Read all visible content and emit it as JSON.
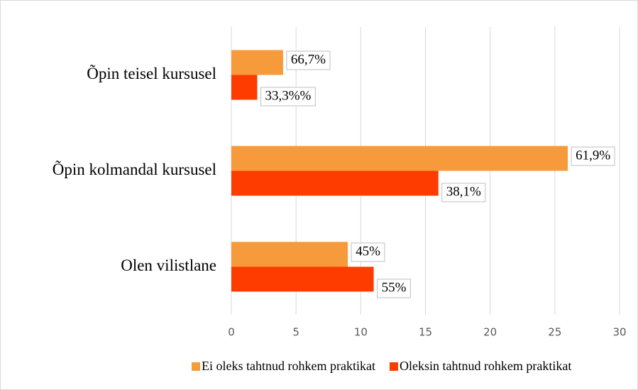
{
  "chart_data": {
    "type": "bar",
    "orientation": "horizontal",
    "categories": [
      "Õpin teisel kursusel",
      "Õpin kolmandal kursusel",
      "Olen vilistlane"
    ],
    "series": [
      {
        "name": "Ei oleks tahtnud rohkem praktikat",
        "color": "#f79a3b",
        "values": [
          4,
          26,
          9
        ],
        "data_labels": [
          "66,7%",
          "61,9%",
          "45%"
        ]
      },
      {
        "name": "Oleksin tahtnud rohkem praktikat",
        "color": "#ff3c00",
        "values": [
          2,
          16,
          11
        ],
        "data_labels": [
          "33,3%%",
          "38,1%",
          "55%"
        ]
      }
    ],
    "xlim": [
      0,
      30
    ],
    "xticks": [
      0,
      5,
      10,
      15,
      20,
      25,
      30
    ],
    "grid": true,
    "legend": "bottom"
  }
}
